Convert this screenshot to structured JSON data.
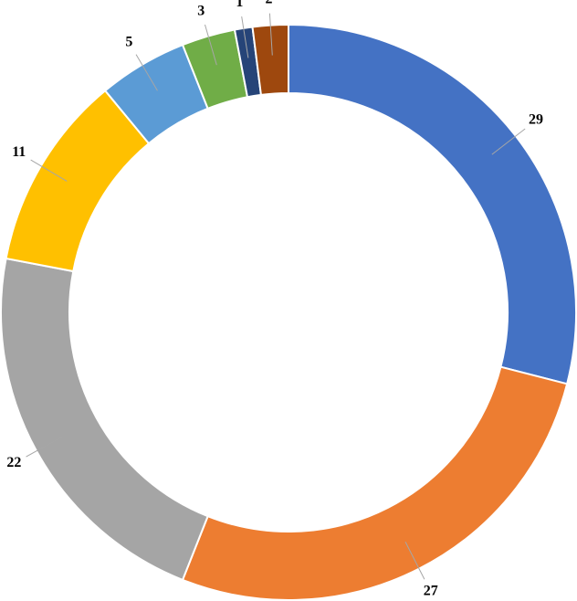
{
  "chart_data": {
    "type": "donut",
    "values": [
      29,
      27,
      22,
      11,
      5,
      3,
      1,
      2
    ],
    "colors": [
      "#4472c4",
      "#ed7d31",
      "#a5a5a5",
      "#ffc000",
      "#5b9bd5",
      "#70ad47",
      "#264478",
      "#9e480e"
    ]
  }
}
